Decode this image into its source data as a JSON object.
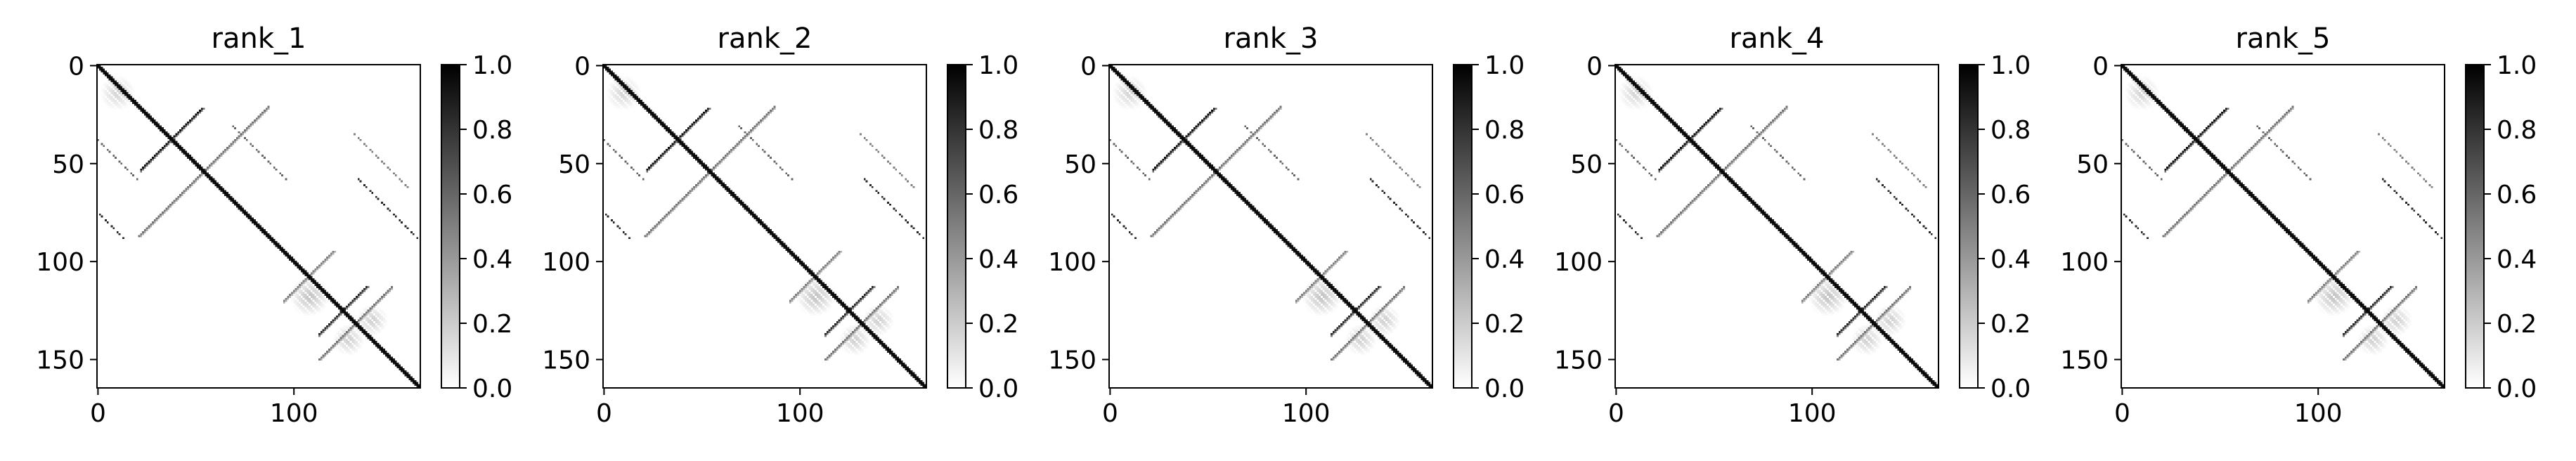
{
  "chart_data": {
    "type": "heatmap",
    "colormap": "gray_r",
    "colorbar": {
      "range": [
        0,
        1.0
      ],
      "ticks": [
        0.0,
        0.2,
        0.4,
        0.6,
        0.8,
        1.0
      ],
      "tick_labels": [
        "0.0",
        "0.2",
        "0.4",
        "0.6",
        "0.8",
        "1.0"
      ]
    },
    "matrix_size": 165,
    "x_ticks": [
      0,
      100
    ],
    "x_tick_labels": [
      "0",
      "100"
    ],
    "y_ticks": [
      0,
      50,
      100,
      150
    ],
    "y_tick_labels": [
      "0",
      "50",
      "100",
      "150"
    ],
    "panels": [
      {
        "title": "rank_1"
      },
      {
        "title": "rank_2"
      },
      {
        "title": "rank_3"
      },
      {
        "title": "rank_4"
      },
      {
        "title": "rank_5"
      }
    ],
    "features": [
      {
        "kind": "diagonal",
        "from": 0,
        "to": 165,
        "value": 1.0
      },
      {
        "kind": "antidiagonal",
        "sum": 75,
        "from": 22,
        "to": 53,
        "value": 0.95
      },
      {
        "kind": "antidiagonal",
        "sum": 108,
        "from": 54,
        "to": 87,
        "value": 0.55
      },
      {
        "kind": "antidiagonal",
        "sum": 250,
        "from": 113,
        "to": 137,
        "value": 0.85
      },
      {
        "kind": "antidiagonal",
        "sum": 215,
        "from": 95,
        "to": 120,
        "value": 0.5
      },
      {
        "kind": "antidiagonal",
        "sum": 263,
        "from": 130,
        "to": 150,
        "value": 0.55
      },
      {
        "kind": "parallel",
        "offset": 38,
        "from": 30,
        "to": 58,
        "value": 0.6
      },
      {
        "kind": "parallel",
        "offset": -38,
        "from": 30,
        "to": 58,
        "value": 0.6
      },
      {
        "kind": "parallel",
        "offset": 96,
        "from": 35,
        "to": 63,
        "value": 0.5
      },
      {
        "kind": "parallel",
        "offset": -96,
        "from": 35,
        "to": 63,
        "value": 0.5
      },
      {
        "kind": "parallel",
        "offset": 75,
        "from": 58,
        "to": 88,
        "value": 0.85
      },
      {
        "kind": "parallel",
        "offset": -75,
        "from": 58,
        "to": 88,
        "value": 0.85
      },
      {
        "kind": "blob",
        "cx": 10,
        "cy": 14,
        "r": 9,
        "value": 0.18
      },
      {
        "kind": "blob",
        "cx": 108,
        "cy": 118,
        "r": 10,
        "value": 0.25
      },
      {
        "kind": "blob",
        "cx": 128,
        "cy": 140,
        "r": 8,
        "value": 0.2
      },
      {
        "kind": "blob",
        "cx": 140,
        "cy": 130,
        "r": 8,
        "value": 0.2
      }
    ]
  }
}
